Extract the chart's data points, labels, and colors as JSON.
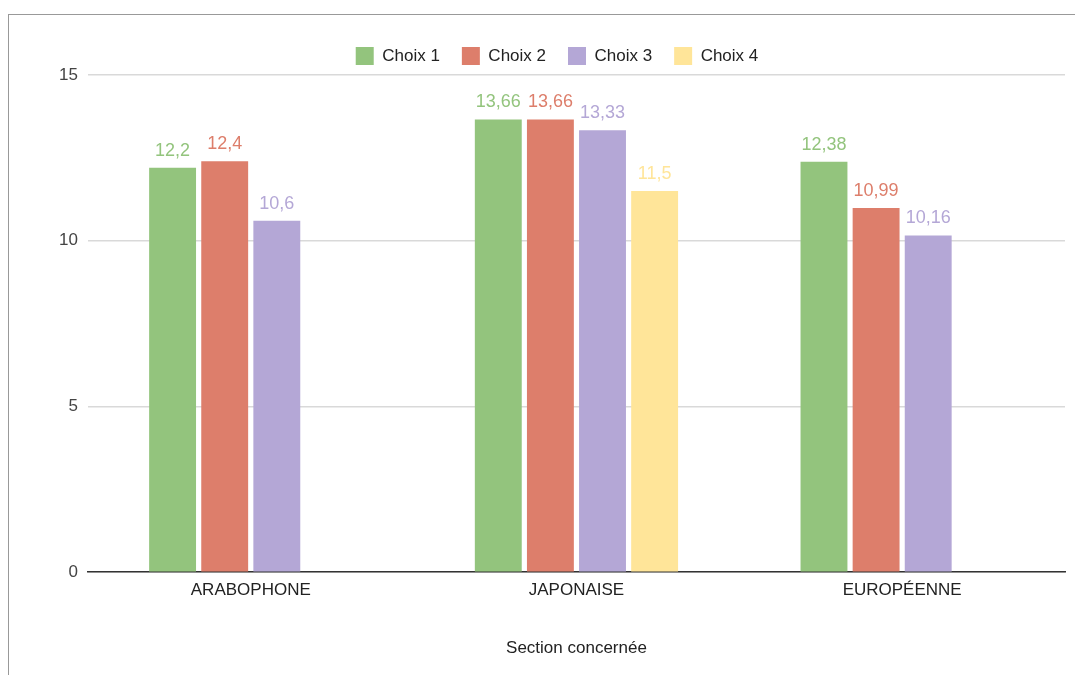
{
  "chart_data": {
    "type": "bar",
    "xlabel": "Section concernée",
    "categories": [
      "ARABOPHONE",
      "JAPONAISE",
      "EUROPÉENNE"
    ],
    "series": [
      {
        "name": "Choix 1",
        "color": "#93c47d",
        "values": [
          12.2,
          13.66,
          12.38
        ],
        "value_labels": [
          "12,2",
          "13,66",
          "12,38"
        ]
      },
      {
        "name": "Choix 2",
        "color": "#dd7e6b",
        "values": [
          12.4,
          13.66,
          10.99
        ],
        "value_labels": [
          "12,4",
          "13,66",
          "10,99"
        ]
      },
      {
        "name": "Choix 3",
        "color": "#b4a7d6",
        "values": [
          10.6,
          13.33,
          10.16
        ],
        "value_labels": [
          "10,6",
          "13,33",
          "10,16"
        ]
      },
      {
        "name": "Choix 4",
        "color": "#ffe599",
        "values": [
          null,
          11.5,
          null
        ],
        "value_labels": [
          null,
          "11,5",
          null
        ]
      }
    ],
    "ylim": [
      0,
      15
    ],
    "yticks": [
      0,
      5,
      10,
      15
    ],
    "grid": "y",
    "legend": "top"
  }
}
